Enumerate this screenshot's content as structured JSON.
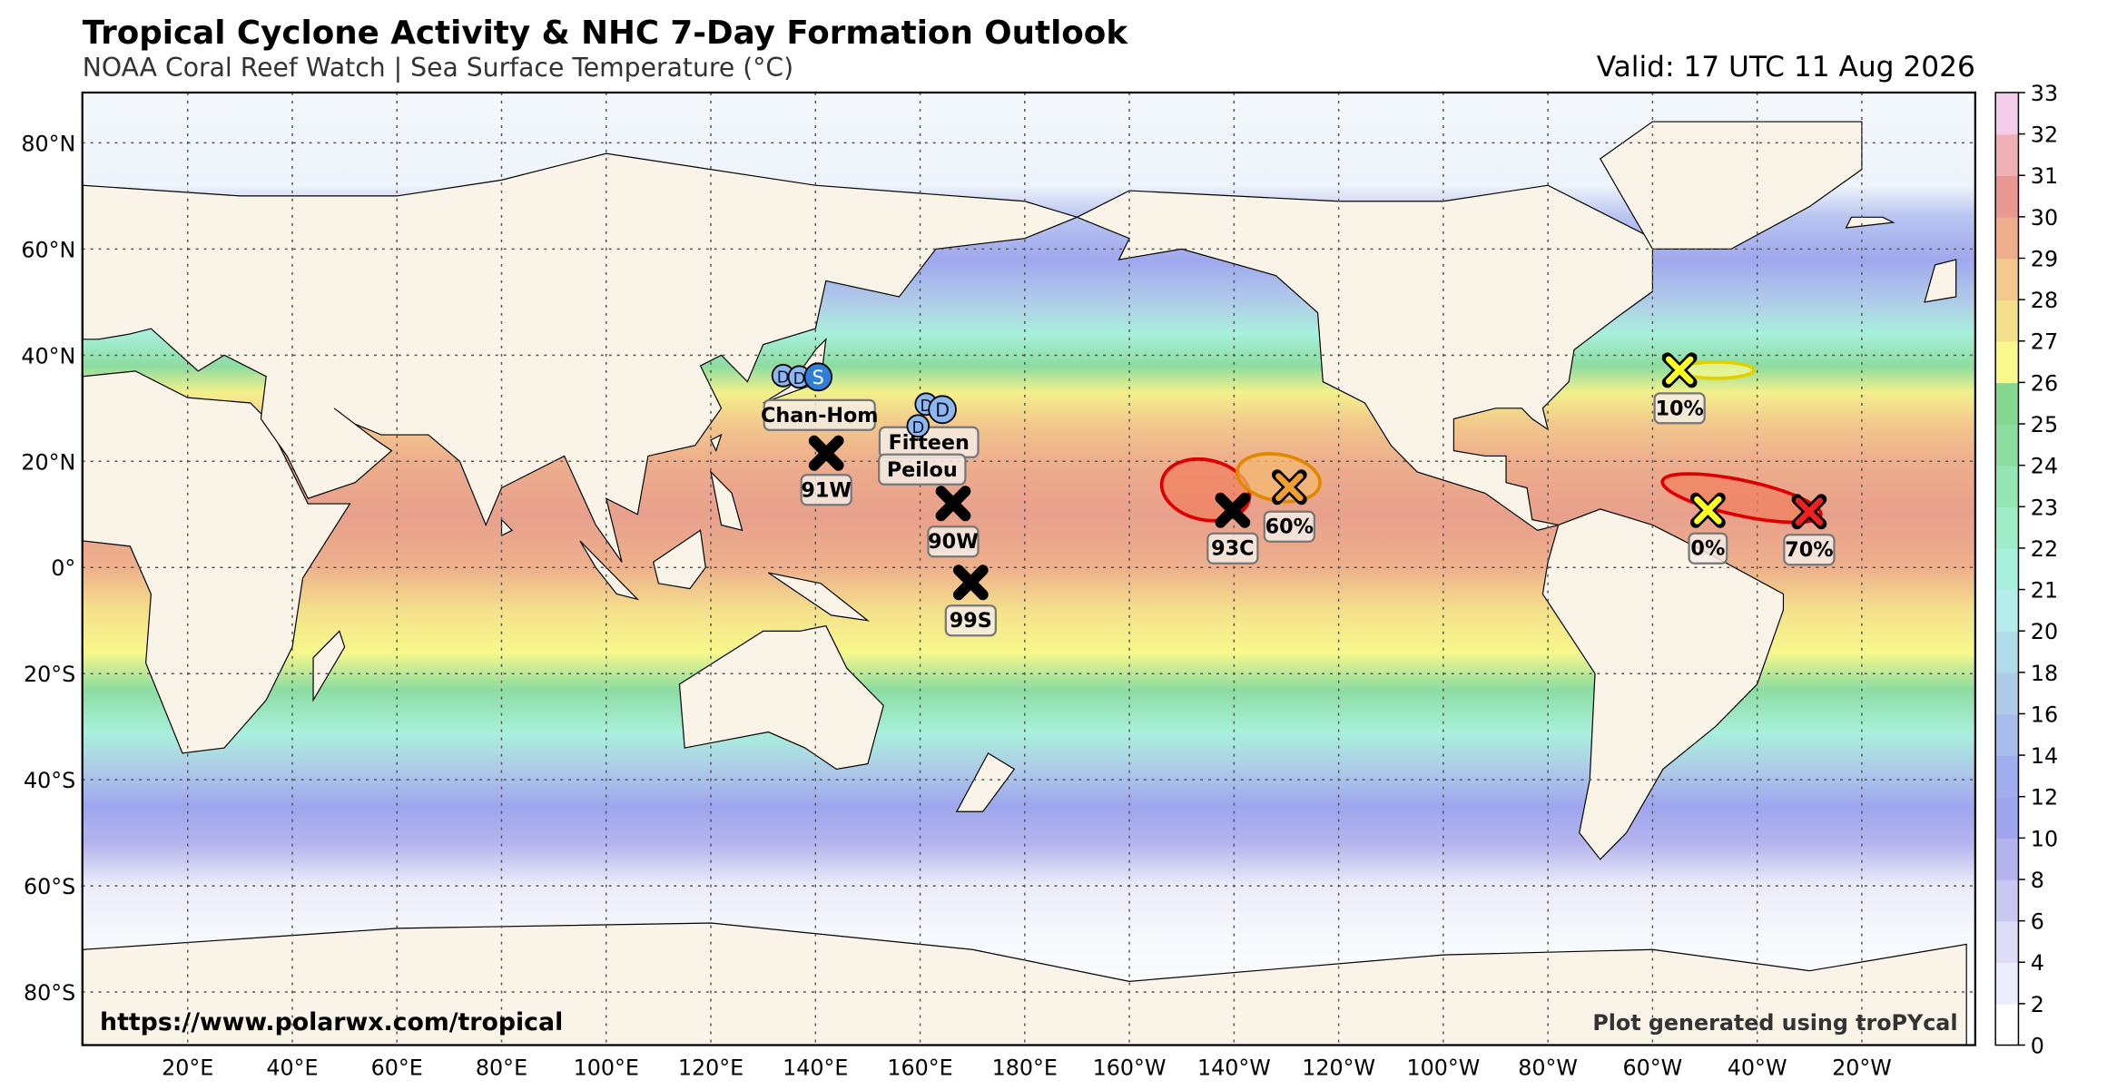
{
  "header": {
    "title": "Tropical Cyclone Activity & NHC 7-Day Formation Outlook",
    "subtitle": "NOAA Coral Reef Watch | Sea Surface Temperature (°C)",
    "valid": "Valid: 17 UTC 11 Aug 2026"
  },
  "map": {
    "lon_labels": [
      "20°E",
      "40°E",
      "60°E",
      "80°E",
      "100°E",
      "120°E",
      "140°E",
      "160°E",
      "180°E",
      "160°W",
      "140°W",
      "120°W",
      "100°W",
      "80°W",
      "60°W",
      "40°W",
      "20°W"
    ],
    "lat_labels": [
      "80°N",
      "60°N",
      "40°N",
      "20°N",
      "0°",
      "20°S",
      "40°S",
      "60°S",
      "80°S"
    ]
  },
  "colorbar": {
    "ticks": [
      0,
      2,
      4,
      6,
      8,
      10,
      12,
      14,
      16,
      18,
      20,
      21,
      22,
      23,
      24,
      25,
      26,
      27,
      28,
      29,
      30,
      31,
      32,
      33
    ]
  },
  "storms": [
    {
      "name": "Chan-Hom",
      "symbols": [
        "D",
        "D",
        "S"
      ]
    },
    {
      "name": "Fifteen",
      "symbols": [
        "D",
        "D"
      ]
    },
    {
      "name": "Peilou",
      "symbols": [
        "D"
      ]
    }
  ],
  "invests": [
    "91W",
    "90W",
    "99S",
    "93C"
  ],
  "outlooks": [
    "60%",
    "10%",
    "0%",
    "70%"
  ],
  "footer": {
    "url": "https://www.polarwx.com/tropical",
    "credit": "Plot generated using troPYcal"
  }
}
